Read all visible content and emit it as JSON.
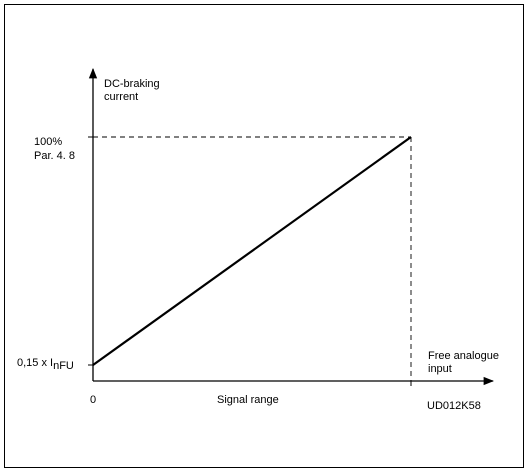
{
  "chart_data": {
    "type": "line",
    "ylabel": [
      "DC-braking",
      "current"
    ],
    "xlabel": "Signal range",
    "x_end_label": [
      "Free analogue",
      "input"
    ],
    "x_origin_label": "0",
    "y_tick_top": [
      "100%",
      "Par. 4. 8"
    ],
    "y_tick_bottom": {
      "prefix": "0,15 x I",
      "subscript": "nFU"
    },
    "figure_code": "UD012K58",
    "series": [
      {
        "points": [
          {
            "x": 0,
            "y": 0.15
          },
          {
            "x": 1,
            "y": 1
          }
        ]
      }
    ],
    "xlim": [
      0,
      1
    ],
    "ylim": [
      0.15,
      1
    ],
    "x_ticks": [
      0,
      1
    ],
    "y_ticks": [
      0.15,
      1
    ],
    "x_units": "signal range (0 to 100%)",
    "y_units": "fraction of Par. 4.8 (100%)",
    "guide_lines": "dashed",
    "grid": false,
    "legend": "none"
  }
}
